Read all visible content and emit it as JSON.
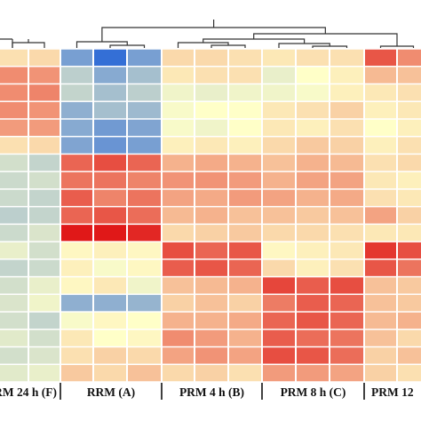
{
  "chart_data": {
    "type": "heatmap",
    "title": "",
    "groups": [
      {
        "label": "RM 24 h (F)",
        "columns": 2
      },
      {
        "label": "RRM (A)",
        "columns": 3
      },
      {
        "label": "PRM 4 h (B)",
        "columns": 3
      },
      {
        "label": "PRM 8 h (C)",
        "columns": 3
      },
      {
        "label": "PRM 12",
        "columns": 2
      }
    ],
    "value_range": [
      -3,
      3
    ],
    "color_scale": [
      "#1e5fd8",
      "#ffffc8",
      "#e01818"
    ],
    "values": [
      [
        0.4,
        0.5,
        -1.8,
        -2.7,
        -1.8,
        0.5,
        0.5,
        0.4,
        0.3,
        0.4,
        0.4,
        2.2,
        1.5
      ],
      [
        1.5,
        1.4,
        -0.9,
        -1.6,
        -1.2,
        0.3,
        0.4,
        0.4,
        -0.3,
        0.0,
        0.2,
        0.9,
        0.8
      ],
      [
        1.5,
        1.6,
        -0.8,
        -1.2,
        -0.9,
        -0.2,
        -0.3,
        -0.2,
        -0.2,
        -0.1,
        0.2,
        0.3,
        0.4
      ],
      [
        1.5,
        1.4,
        -1.5,
        -1.2,
        -1.3,
        -0.1,
        0.0,
        0.0,
        0.3,
        0.4,
        0.6,
        0.2,
        0.3
      ],
      [
        1.3,
        1.3,
        -1.6,
        -1.9,
        -1.7,
        -0.1,
        -0.2,
        0.0,
        0.3,
        0.2,
        0.4,
        0.0,
        0.2
      ],
      [
        0.4,
        0.5,
        -1.7,
        -2.0,
        -1.8,
        0.2,
        0.3,
        0.2,
        0.5,
        0.7,
        0.6,
        0.2,
        0.4
      ],
      [
        -0.6,
        -0.8,
        2.0,
        2.3,
        2.0,
        1.0,
        1.1,
        1.0,
        0.8,
        1.0,
        0.9,
        0.4,
        0.5
      ],
      [
        -0.7,
        -0.6,
        1.8,
        1.8,
        1.6,
        1.4,
        1.4,
        1.3,
        1.0,
        1.2,
        1.2,
        0.3,
        0.2
      ],
      [
        -0.7,
        -0.8,
        2.1,
        1.6,
        1.8,
        1.2,
        1.1,
        1.3,
        1.2,
        1.0,
        1.1,
        0.4,
        0.3
      ],
      [
        -0.9,
        -0.8,
        2.0,
        2.2,
        1.9,
        0.9,
        1.0,
        0.8,
        0.8,
        0.7,
        0.8,
        1.2,
        0.6
      ],
      [
        -0.7,
        -0.5,
        3.0,
        3.0,
        2.8,
        0.5,
        0.6,
        0.7,
        0.5,
        0.5,
        0.4,
        0.3,
        0.3
      ],
      [
        -0.3,
        -0.6,
        0.1,
        0.2,
        0.1,
        2.3,
        2.0,
        2.2,
        0.1,
        0.2,
        0.3,
        2.6,
        2.3
      ],
      [
        -0.8,
        -0.7,
        0.2,
        -0.1,
        0.1,
        2.1,
        2.2,
        2.0,
        0.5,
        0.2,
        0.4,
        2.2,
        1.8
      ],
      [
        -0.6,
        -0.3,
        0.1,
        0.3,
        -0.2,
        0.8,
        0.9,
        1.0,
        2.4,
        2.1,
        2.3,
        0.8,
        0.7
      ],
      [
        -0.5,
        -0.2,
        -1.5,
        -1.5,
        -1.4,
        0.6,
        0.8,
        0.6,
        1.7,
        2.1,
        2.0,
        0.8,
        0.7
      ],
      [
        -0.6,
        -0.8,
        -0.1,
        0.1,
        0.0,
        1.0,
        1.0,
        1.1,
        2.0,
        2.2,
        2.0,
        0.9,
        1.0
      ],
      [
        -0.4,
        -0.6,
        0.3,
        0.0,
        0.1,
        1.5,
        1.3,
        1.0,
        2.1,
        1.9,
        1.8,
        0.8,
        0.5
      ],
      [
        -0.6,
        -0.5,
        0.4,
        0.6,
        0.5,
        1.2,
        1.4,
        1.2,
        2.3,
        2.2,
        1.9,
        0.6,
        0.8
      ],
      [
        -0.4,
        -0.3,
        0.7,
        0.5,
        0.8,
        0.5,
        0.6,
        0.4,
        1.3,
        1.3,
        1.2,
        0.6,
        0.4
      ]
    ]
  }
}
